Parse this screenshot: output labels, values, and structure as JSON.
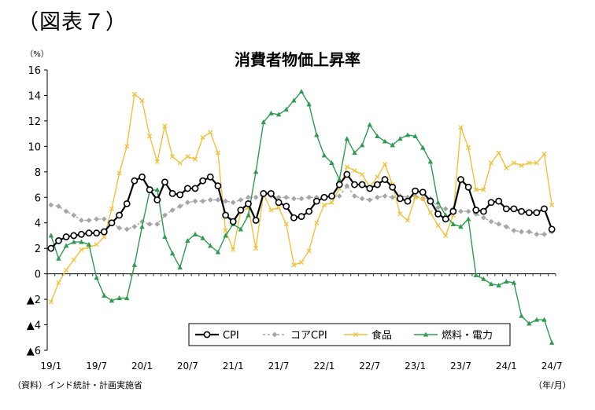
{
  "figure_label": "（図表７）",
  "source_note": "（資料）インド統計・計画実施省",
  "x_unit": "（年/月）",
  "chart_data": {
    "type": "line",
    "title": "消費者物価上昇率",
    "ylabel": "（%）",
    "ylim": [
      -6,
      16
    ],
    "yticks": [
      16,
      14,
      12,
      10,
      8,
      6,
      4,
      2,
      0,
      -2,
      -4,
      -6
    ],
    "ytick_labels": [
      "16",
      "14",
      "12",
      "10",
      "8",
      "6",
      "4",
      "2",
      "0",
      "▲2",
      "▲4",
      "▲6"
    ],
    "x_tick_labels": [
      "19/1",
      "19/7",
      "20/1",
      "20/7",
      "21/1",
      "21/7",
      "22/1",
      "22/7",
      "23/1",
      "23/7",
      "24/1",
      "24/7"
    ],
    "x_tick_index": [
      0,
      6,
      12,
      18,
      24,
      30,
      36,
      42,
      48,
      54,
      60,
      66
    ],
    "grid": false,
    "legend_position": "bottom-right",
    "series": [
      {
        "name": "CPI",
        "color": "#000000",
        "marker": "circle",
        "values": [
          2.0,
          2.6,
          2.9,
          3.0,
          3.1,
          3.2,
          3.2,
          3.3,
          4.0,
          4.6,
          5.5,
          7.3,
          7.6,
          6.6,
          5.8,
          7.2,
          6.3,
          6.2,
          6.7,
          6.7,
          7.3,
          7.6,
          6.9,
          4.6,
          4.1,
          5.0,
          5.5,
          4.2,
          6.3,
          6.3,
          5.6,
          5.3,
          4.4,
          4.5,
          4.9,
          5.7,
          6.0,
          6.1,
          7.0,
          7.8,
          7.0,
          7.0,
          6.7,
          7.0,
          7.4,
          6.8,
          5.9,
          5.7,
          6.5,
          6.4,
          5.7,
          4.7,
          4.3,
          4.9,
          7.4,
          6.8,
          5.0,
          4.9,
          5.6,
          5.7,
          5.1,
          5.1,
          4.9,
          4.8,
          4.8,
          5.1,
          3.5
        ]
      },
      {
        "name": "コアCPI",
        "color": "#a6a6a6",
        "marker": "diamond",
        "values": [
          5.4,
          5.3,
          4.9,
          4.6,
          4.2,
          4.2,
          4.3,
          4.3,
          4.0,
          3.6,
          3.5,
          3.7,
          4.1,
          3.9,
          3.9,
          4.6,
          5.0,
          5.3,
          5.6,
          5.7,
          5.7,
          5.8,
          5.8,
          5.7,
          5.6,
          5.8,
          6.0,
          6.0,
          6.2,
          6.1,
          6.0,
          6.0,
          5.9,
          5.9,
          6.0,
          6.0,
          6.0,
          6.1,
          6.1,
          6.9,
          6.1,
          5.9,
          5.8,
          6.0,
          6.1,
          6.0,
          6.1,
          6.0,
          6.1,
          5.9,
          5.9,
          5.2,
          5.1,
          5.1,
          4.9,
          4.9,
          4.7,
          4.4,
          4.1,
          3.9,
          3.7,
          3.4,
          3.3,
          3.3,
          3.1,
          3.1,
          3.3
        ]
      },
      {
        "name": "食品",
        "color": "#f2c13d",
        "marker": "x",
        "values": [
          -2.2,
          -0.7,
          0.3,
          1.1,
          1.9,
          2.1,
          2.3,
          2.9,
          5.1,
          7.9,
          10.0,
          14.1,
          13.6,
          10.8,
          8.8,
          11.6,
          9.2,
          8.7,
          9.2,
          9.0,
          10.7,
          11.1,
          9.5,
          3.4,
          1.9,
          4.9,
          5.2,
          2.0,
          6.3,
          5.0,
          5.2,
          3.9,
          0.7,
          0.9,
          1.8,
          4.0,
          5.4,
          5.6,
          6.7,
          8.4,
          8.1,
          7.8,
          6.8,
          7.6,
          8.6,
          7.0,
          4.7,
          4.2,
          6.0,
          5.9,
          4.8,
          3.8,
          3.0,
          4.6,
          11.5,
          9.9,
          6.6,
          6.6,
          8.7,
          9.5,
          8.3,
          8.7,
          8.5,
          8.7,
          8.7,
          9.4,
          5.4
        ]
      },
      {
        "name": "燃料・電力",
        "color": "#2e9b4f",
        "marker": "triangle",
        "values": [
          3.0,
          1.2,
          2.2,
          2.5,
          2.5,
          2.3,
          -0.3,
          -1.7,
          -2.1,
          -1.9,
          -1.9,
          0.7,
          3.7,
          6.5,
          6.6,
          2.9,
          1.6,
          0.5,
          2.6,
          3.1,
          2.8,
          2.2,
          1.7,
          3.0,
          3.9,
          3.5,
          4.6,
          8.0,
          11.9,
          12.6,
          12.5,
          12.9,
          13.6,
          14.3,
          13.3,
          10.9,
          9.3,
          8.7,
          7.4,
          10.6,
          9.5,
          10.1,
          11.7,
          10.8,
          10.4,
          10.1,
          10.6,
          10.9,
          10.8,
          9.9,
          8.8,
          5.6,
          4.6,
          3.9,
          3.7,
          4.3,
          -0.1,
          -0.4,
          -0.8,
          -0.9,
          -0.6,
          -0.7,
          -3.3,
          -3.9,
          -3.6,
          -3.6,
          -5.4
        ]
      }
    ]
  }
}
